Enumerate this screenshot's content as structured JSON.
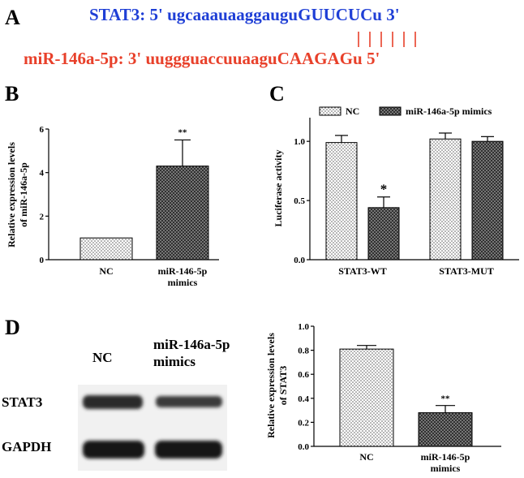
{
  "panel_labels": {
    "a": "A",
    "b": "B",
    "c": "C",
    "d": "D"
  },
  "sequence": {
    "stat3_prefix": "STAT3: 5' ugcaaauaaggaugu",
    "stat3_seed": "GUUCUC",
    "stat3_suffix": "u 3'",
    "mir_prefix": "miR-146a-5p: 3' uuggguaccuuaagu",
    "mir_seed": "CAAGAG",
    "mir_suffix": "u 5'",
    "stat3_color": "#1f3fd6",
    "mir_color": "#e8402a",
    "pair_count": 6
  },
  "chart_data": [
    {
      "id": "B",
      "type": "bar",
      "categories": [
        "NC",
        "miR-146-5p\nmimics"
      ],
      "values": [
        1.0,
        4.3
      ],
      "errors": [
        0,
        1.2
      ],
      "significance": [
        "",
        "**"
      ],
      "ylabel": "Relative  expression levels\nof miR-146a-5p",
      "ylim": [
        0,
        6
      ],
      "yticks": [
        0,
        2,
        4,
        6
      ],
      "fills": [
        "dots",
        "crosshatch"
      ]
    },
    {
      "id": "C",
      "type": "bar",
      "categories": [
        "STAT3-WT",
        "STAT3-MUT"
      ],
      "series": [
        {
          "name": "NC",
          "values": [
            0.99,
            1.02
          ],
          "errors": [
            0.06,
            0.05
          ],
          "significance": [
            "",
            ""
          ]
        },
        {
          "name": "miR-146a-5p mimics",
          "values": [
            0.44,
            1.0
          ],
          "errors": [
            0.09,
            0.04
          ],
          "significance": [
            "*",
            ""
          ]
        }
      ],
      "ylabel": "Luciferase activity",
      "ylim": [
        0,
        1.2
      ],
      "yticks": [
        0.0,
        0.5,
        1.0
      ],
      "ytick_labels": [
        "0.0",
        "0.5",
        "1.0"
      ],
      "legend_position": "top"
    },
    {
      "id": "D",
      "type": "bar",
      "categories": [
        "NC",
        "miR-146-5p\nmimics"
      ],
      "values": [
        0.81,
        0.28
      ],
      "errors": [
        0.03,
        0.06
      ],
      "significance": [
        "",
        "**"
      ],
      "ylabel": "Relative  expression levels\nof STAT3",
      "ylim": [
        0,
        1.0
      ],
      "yticks": [
        0.0,
        0.2,
        0.4,
        0.6,
        0.8,
        1.0
      ],
      "ytick_labels": [
        "0.0",
        "0.2",
        "0.4",
        "0.6",
        "0.8",
        "1.0"
      ],
      "fills": [
        "dots",
        "crosshatch"
      ]
    }
  ],
  "western_blot": {
    "columns": [
      "NC",
      "miR-146a-5p\nmimics"
    ],
    "rows": [
      "STAT3",
      "GAPDH"
    ]
  }
}
